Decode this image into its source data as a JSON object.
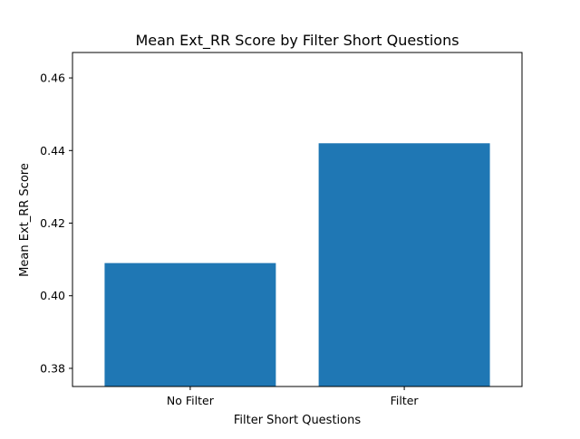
{
  "chart_data": {
    "type": "bar",
    "title": "Mean Ext_RR Score by Filter Short Questions",
    "xlabel": "Filter Short Questions",
    "ylabel": "Mean Ext_RR Score",
    "categories": [
      "No Filter",
      "Filter"
    ],
    "values": [
      0.409,
      0.442
    ],
    "ylim": [
      0.375,
      0.467
    ],
    "yticks": [
      0.38,
      0.4,
      0.42,
      0.44,
      0.46
    ],
    "ytick_labels": [
      "0.38",
      "0.40",
      "0.42",
      "0.44",
      "0.46"
    ],
    "bar_color": "#1f77b4",
    "grid": false,
    "legend": "none"
  }
}
